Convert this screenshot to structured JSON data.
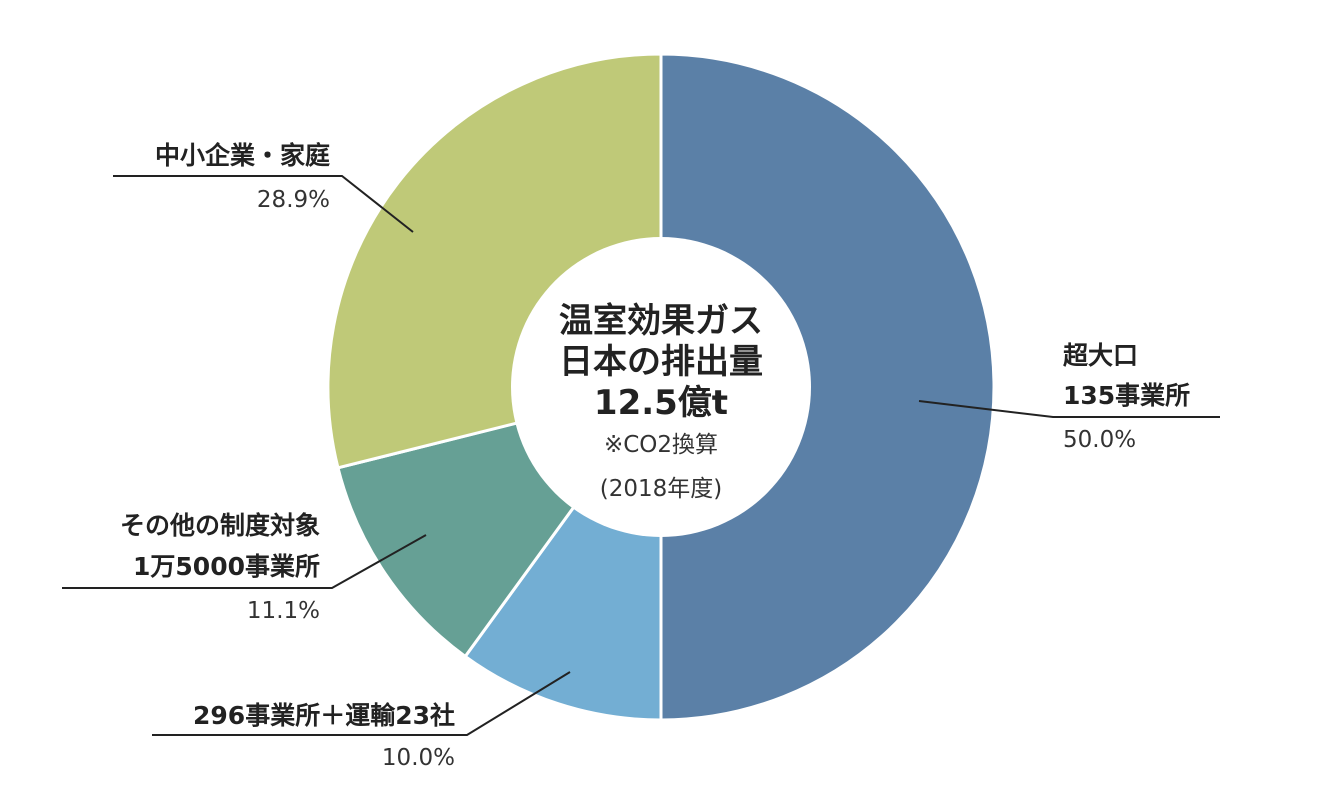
{
  "chart_data": {
    "type": "pie",
    "style": "donut",
    "center": {
      "lines": [
        "温室効果ガス",
        "日本の排出量",
        "12.5億t"
      ],
      "note": "※CO2換算",
      "year": "(2018年度)"
    },
    "slices": [
      {
        "label_lines": [
          "超大口",
          "135事業所"
        ],
        "value": 50.0,
        "value_label": "50.0%",
        "color": "#5b80a7"
      },
      {
        "label_lines": [
          "296事業所＋運輸23社"
        ],
        "value": 10.0,
        "value_label": "10.0%",
        "color": "#73aed3"
      },
      {
        "label_lines": [
          "その他の制度対象",
          "1万5000事業所"
        ],
        "value": 11.1,
        "value_label": "11.1%",
        "color": "#66a095"
      },
      {
        "label_lines": [
          "中小企業・家庭"
        ],
        "value": 28.9,
        "value_label": "28.9%",
        "color": "#bfc978"
      }
    ]
  }
}
